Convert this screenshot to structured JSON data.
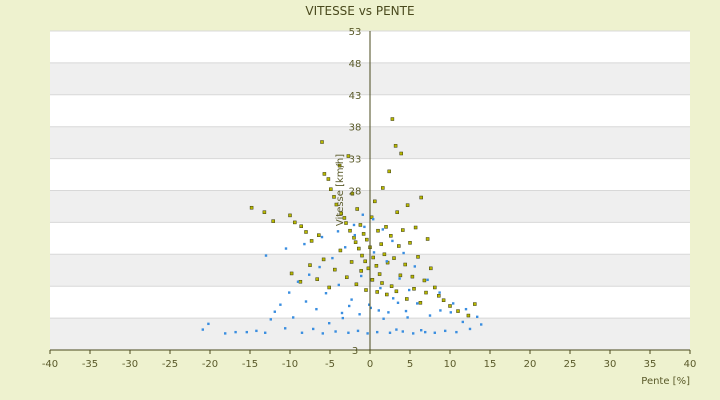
{
  "chart_data": {
    "type": "scatter",
    "title": "VITESSE vs PENTE",
    "xlabel": "Pente [%]",
    "ylabel": "Vitesse [km/h]",
    "xlim": [
      -40,
      40
    ],
    "ylim": [
      3,
      53
    ],
    "x_ticks": [
      "-40",
      "-35",
      "-30",
      "-25",
      "-20",
      "-15",
      "-10",
      "-5",
      "0",
      "5",
      "10",
      "15",
      "20",
      "25",
      "30",
      "35",
      "40"
    ],
    "y_ticks": [
      "3",
      "8",
      "13",
      "18",
      "23",
      "28",
      "33",
      "38",
      "43",
      "48",
      "53"
    ],
    "y_tick_labels_shown": [
      "3",
      "28",
      "33",
      "38",
      "43",
      "48",
      "53"
    ],
    "grid": "horizontal alternating bands",
    "legend": "none",
    "colors": {
      "background": "#eef2cf",
      "plot_band_light": "#ffffff",
      "plot_band_dark": "#efefef",
      "gridline": "#d8d8d8",
      "series_a": "#b8b800",
      "series_a_edge": "#3a3a10",
      "series_b": "#3a8ee0",
      "axis": "#4a4a1e"
    },
    "series": [
      {
        "color": "#b8b800",
        "points": [
          [
            -14.8,
            25.3
          ],
          [
            -13.2,
            24.6
          ],
          [
            -12.1,
            23.2
          ],
          [
            -10.0,
            24.1
          ],
          [
            -9.4,
            23.0
          ],
          [
            -8.6,
            22.4
          ],
          [
            -8.0,
            21.5
          ],
          [
            -7.3,
            20.1
          ],
          [
            -6.4,
            21.0
          ],
          [
            -6.0,
            35.6
          ],
          [
            -5.7,
            30.6
          ],
          [
            -5.2,
            29.8
          ],
          [
            -4.9,
            28.2
          ],
          [
            -4.5,
            27.0
          ],
          [
            -4.2,
            25.8
          ],
          [
            -3.8,
            31.9
          ],
          [
            -3.6,
            24.4
          ],
          [
            -3.2,
            23.7
          ],
          [
            -3.0,
            22.9
          ],
          [
            -2.7,
            33.4
          ],
          [
            -2.5,
            21.7
          ],
          [
            -2.2,
            27.5
          ],
          [
            -2.0,
            20.6
          ],
          [
            -1.8,
            19.9
          ],
          [
            -1.6,
            25.1
          ],
          [
            -1.4,
            18.9
          ],
          [
            -1.2,
            22.6
          ],
          [
            -1.0,
            17.8
          ],
          [
            -0.8,
            21.2
          ],
          [
            -0.6,
            16.9
          ],
          [
            -0.4,
            20.3
          ],
          [
            -0.2,
            15.8
          ],
          [
            0.0,
            19.1
          ],
          [
            0.2,
            23.8
          ],
          [
            0.4,
            17.5
          ],
          [
            0.6,
            26.3
          ],
          [
            0.8,
            16.2
          ],
          [
            1.0,
            21.7
          ],
          [
            1.2,
            14.9
          ],
          [
            1.4,
            19.6
          ],
          [
            1.6,
            28.4
          ],
          [
            1.8,
            18.0
          ],
          [
            2.0,
            22.3
          ],
          [
            2.2,
            16.7
          ],
          [
            2.4,
            31.0
          ],
          [
            2.6,
            20.9
          ],
          [
            2.8,
            39.2
          ],
          [
            3.0,
            17.4
          ],
          [
            3.2,
            35.0
          ],
          [
            3.4,
            24.6
          ],
          [
            3.6,
            19.3
          ],
          [
            3.9,
            33.8
          ],
          [
            4.1,
            21.8
          ],
          [
            4.4,
            16.4
          ],
          [
            4.7,
            25.7
          ],
          [
            5.0,
            19.8
          ],
          [
            5.3,
            14.5
          ],
          [
            5.7,
            22.2
          ],
          [
            6.0,
            17.6
          ],
          [
            6.4,
            26.9
          ],
          [
            6.8,
            13.9
          ],
          [
            7.2,
            20.4
          ],
          [
            7.6,
            15.8
          ],
          [
            8.1,
            12.8
          ],
          [
            8.6,
            11.5
          ],
          [
            9.2,
            10.8
          ],
          [
            10.0,
            9.9
          ],
          [
            11.0,
            9.1
          ],
          [
            12.3,
            8.4
          ],
          [
            13.1,
            10.2
          ],
          [
            -9.8,
            15.0
          ],
          [
            -8.7,
            13.7
          ],
          [
            -7.5,
            16.3
          ],
          [
            -6.6,
            14.1
          ],
          [
            -5.8,
            17.2
          ],
          [
            -5.1,
            12.8
          ],
          [
            -4.4,
            15.6
          ],
          [
            -3.7,
            18.6
          ],
          [
            -2.9,
            14.4
          ],
          [
            -2.3,
            16.8
          ],
          [
            -1.7,
            13.3
          ],
          [
            -1.1,
            15.4
          ],
          [
            -0.5,
            12.4
          ],
          [
            0.3,
            14.0
          ],
          [
            0.9,
            12.1
          ],
          [
            1.5,
            13.5
          ],
          [
            2.1,
            11.7
          ],
          [
            2.7,
            13.0
          ],
          [
            3.3,
            12.2
          ],
          [
            3.8,
            14.7
          ],
          [
            4.6,
            11.0
          ],
          [
            5.5,
            12.6
          ],
          [
            6.3,
            10.4
          ],
          [
            7.0,
            12.0
          ]
        ]
      },
      {
        "color": "#3a8ee0",
        "points": [
          [
            -20.9,
            6.2
          ],
          [
            -20.2,
            7.1
          ],
          [
            -18.1,
            5.6
          ],
          [
            -16.8,
            5.8
          ],
          [
            -15.4,
            5.8
          ],
          [
            -14.2,
            6.0
          ],
          [
            -13.1,
            5.7
          ],
          [
            -12.4,
            7.8
          ],
          [
            -11.9,
            9.0
          ],
          [
            -11.2,
            10.1
          ],
          [
            -10.6,
            6.4
          ],
          [
            -10.1,
            12.0
          ],
          [
            -9.6,
            8.1
          ],
          [
            -9.0,
            13.7
          ],
          [
            -8.5,
            5.7
          ],
          [
            -8.0,
            10.6
          ],
          [
            -7.6,
            14.8
          ],
          [
            -7.1,
            6.3
          ],
          [
            -6.7,
            9.4
          ],
          [
            -6.3,
            16.0
          ],
          [
            -5.9,
            5.6
          ],
          [
            -5.5,
            11.9
          ],
          [
            -5.1,
            7.2
          ],
          [
            -4.7,
            17.4
          ],
          [
            -4.3,
            5.9
          ],
          [
            -3.9,
            13.2
          ],
          [
            -3.5,
            8.8
          ],
          [
            -3.1,
            19.1
          ],
          [
            -2.7,
            5.7
          ],
          [
            -2.3,
            10.9
          ],
          [
            -1.9,
            21.0
          ],
          [
            -1.5,
            6.0
          ],
          [
            -1.1,
            14.6
          ],
          [
            -0.7,
            22.3
          ],
          [
            -0.3,
            5.6
          ],
          [
            0.1,
            9.6
          ],
          [
            0.5,
            18.3
          ],
          [
            0.9,
            5.8
          ],
          [
            1.3,
            12.7
          ],
          [
            1.7,
            7.9
          ],
          [
            2.1,
            16.9
          ],
          [
            2.5,
            5.7
          ],
          [
            2.9,
            11.1
          ],
          [
            3.3,
            6.2
          ],
          [
            3.7,
            14.2
          ],
          [
            4.1,
            5.9
          ],
          [
            4.5,
            9.1
          ],
          [
            4.9,
            12.4
          ],
          [
            5.4,
            5.6
          ],
          [
            5.9,
            10.3
          ],
          [
            6.4,
            6.1
          ],
          [
            6.9,
            5.8
          ],
          [
            7.5,
            8.4
          ],
          [
            8.1,
            5.7
          ],
          [
            8.8,
            9.2
          ],
          [
            9.4,
            6.0
          ],
          [
            10.1,
            8.9
          ],
          [
            10.8,
            5.8
          ],
          [
            11.6,
            7.4
          ],
          [
            12.5,
            6.3
          ],
          [
            13.4,
            8.2
          ],
          [
            13.9,
            7.0
          ],
          [
            -13.0,
            17.8
          ],
          [
            -10.5,
            18.9
          ],
          [
            -8.2,
            19.6
          ],
          [
            -6.0,
            20.7
          ],
          [
            -4.0,
            21.6
          ],
          [
            -2.0,
            22.6
          ],
          [
            -0.9,
            24.2
          ],
          [
            0.4,
            23.5
          ],
          [
            1.6,
            21.9
          ],
          [
            2.8,
            20.1
          ],
          [
            4.2,
            18.2
          ],
          [
            5.6,
            16.1
          ],
          [
            7.2,
            14.0
          ],
          [
            8.7,
            12.0
          ],
          [
            10.4,
            10.3
          ],
          [
            12.0,
            9.4
          ],
          [
            -3.4,
            8.0
          ],
          [
            -2.6,
            9.9
          ],
          [
            -1.3,
            8.6
          ],
          [
            -0.1,
            10.1
          ],
          [
            1.1,
            9.2
          ],
          [
            2.3,
            8.9
          ],
          [
            3.5,
            10.4
          ],
          [
            4.7,
            8.1
          ]
        ]
      }
    ]
  }
}
